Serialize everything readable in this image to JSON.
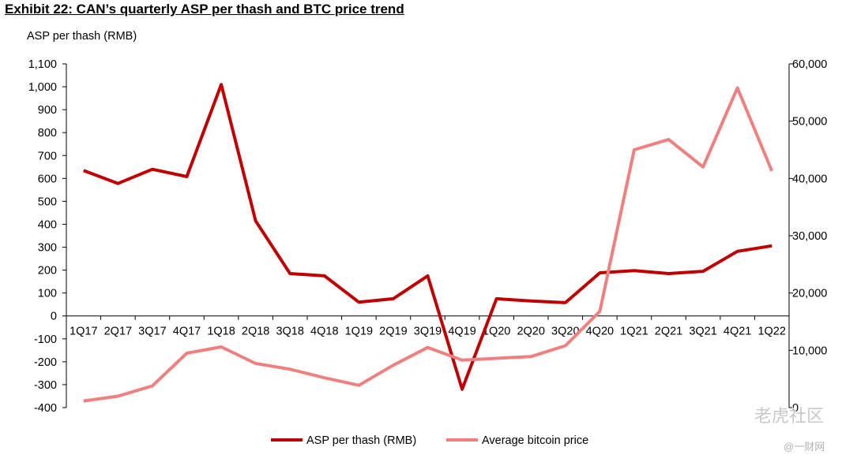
{
  "title": "Exhibit 22: CAN’s quarterly ASP per thash and BTC price trend",
  "chart_data": {
    "type": "line",
    "ylabel": "ASP per thash (RMB)",
    "categories": [
      "1Q17",
      "2Q17",
      "3Q17",
      "4Q17",
      "1Q18",
      "2Q18",
      "3Q18",
      "4Q18",
      "1Q19",
      "2Q19",
      "3Q19",
      "4Q19",
      "1Q20",
      "2Q20",
      "3Q20",
      "4Q20",
      "1Q21",
      "2Q21",
      "3Q21",
      "4Q21",
      "1Q22"
    ],
    "ylim": [
      -400,
      1100
    ],
    "yticks": [
      -400,
      -300,
      -200,
      -100,
      0,
      100,
      200,
      300,
      400,
      500,
      600,
      700,
      800,
      900,
      1000,
      1100
    ],
    "ytick_labels": [
      "-400",
      "-300",
      "-200",
      "-100",
      "0",
      "100",
      "200",
      "300",
      "400",
      "500",
      "600",
      "700",
      "800",
      "900",
      "1,000",
      "1,100"
    ],
    "y2lim": [
      0,
      60000
    ],
    "y2ticks": [
      0,
      10000,
      20000,
      30000,
      40000,
      50000,
      60000
    ],
    "y2tick_labels": [
      "0",
      "10,000",
      "20,000",
      "30,000",
      "40,000",
      "50,000",
      "60,000"
    ],
    "series": [
      {
        "name": "ASP per thash (RMB)",
        "axis": "left",
        "color": "#c00000",
        "values": [
          635,
          578,
          640,
          608,
          1010,
          415,
          185,
          175,
          60,
          75,
          175,
          -320,
          75,
          65,
          58,
          188,
          198,
          185,
          195,
          282,
          306
        ]
      },
      {
        "name": "Average bitcoin price",
        "axis": "right",
        "color": "#f08080",
        "values": [
          1150,
          2000,
          3800,
          9500,
          10600,
          7700,
          6700,
          5200,
          3900,
          7400,
          10500,
          8300,
          8600,
          8900,
          10800,
          16800,
          45000,
          46800,
          42000,
          55800,
          41300
        ]
      }
    ],
    "legend_position": "bottom"
  },
  "watermark": {
    "text1": "老虎社区",
    "text2": "@一财网"
  }
}
